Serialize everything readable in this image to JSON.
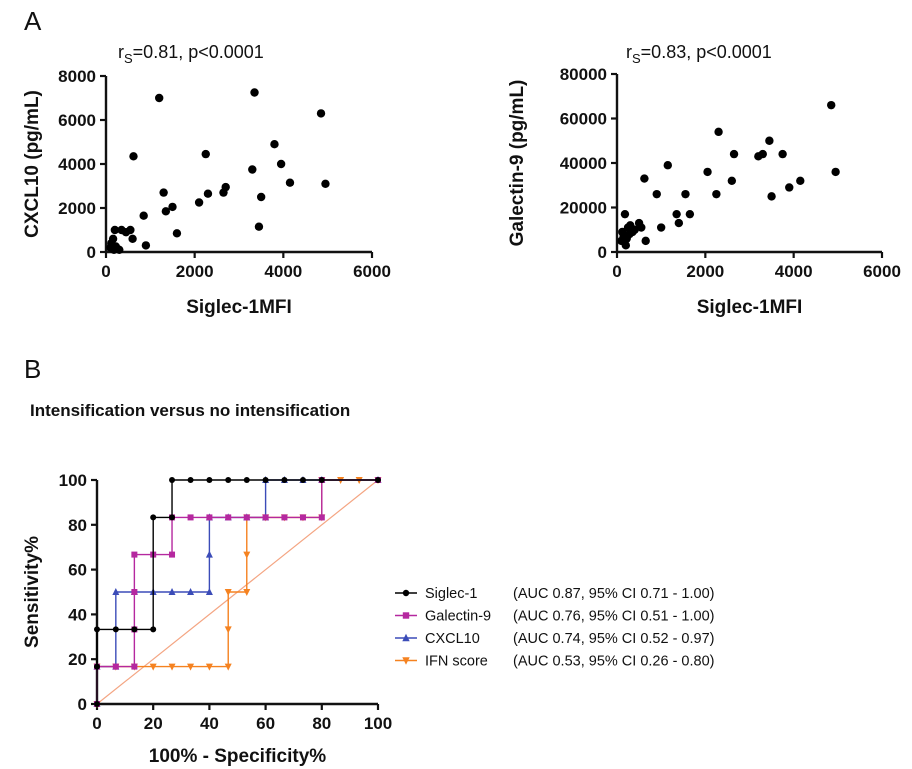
{
  "panel_letters": {
    "a": "A",
    "b": "B"
  },
  "chart_data": [
    {
      "id": "scatter_cxcl10",
      "type": "scatter",
      "annotation": {
        "r": "r",
        "sub": "S",
        "rest": "=0.81, p<0.0001"
      },
      "xlabel": "Siglec-1MFI",
      "ylabel": "CXCL10 (pg/mL)",
      "xlim": [
        0,
        6000
      ],
      "ylim": [
        0,
        8000
      ],
      "xticks": [
        0,
        2000,
        4000,
        6000
      ],
      "yticks": [
        0,
        2000,
        4000,
        6000,
        8000
      ],
      "grid": false,
      "color": "#000000",
      "points": [
        [
          100,
          200
        ],
        [
          120,
          400
        ],
        [
          150,
          300
        ],
        [
          160,
          600
        ],
        [
          180,
          100
        ],
        [
          200,
          1000
        ],
        [
          220,
          250
        ],
        [
          250,
          150
        ],
        [
          300,
          100
        ],
        [
          350,
          1000
        ],
        [
          450,
          900
        ],
        [
          550,
          1000
        ],
        [
          600,
          600
        ],
        [
          620,
          4350
        ],
        [
          850,
          1650
        ],
        [
          900,
          300
        ],
        [
          1200,
          7000
        ],
        [
          1300,
          2700
        ],
        [
          1350,
          1850
        ],
        [
          1500,
          2050
        ],
        [
          1600,
          850
        ],
        [
          2100,
          2250
        ],
        [
          2250,
          4450
        ],
        [
          2300,
          2650
        ],
        [
          2650,
          2700
        ],
        [
          2700,
          2950
        ],
        [
          3300,
          3750
        ],
        [
          3350,
          7250
        ],
        [
          3450,
          1150
        ],
        [
          3500,
          2500
        ],
        [
          3800,
          4900
        ],
        [
          3950,
          4000
        ],
        [
          4150,
          3150
        ],
        [
          4850,
          6300
        ],
        [
          4950,
          3100
        ]
      ]
    },
    {
      "id": "scatter_galectin",
      "type": "scatter",
      "annotation": {
        "r": "r",
        "sub": "S",
        "rest": "=0.83, p<0.0001"
      },
      "xlabel": "Siglec-1MFI",
      "ylabel": "Galectin-9 (pg/mL)",
      "xlim": [
        0,
        6000
      ],
      "ylim": [
        0,
        80000
      ],
      "xticks": [
        0,
        2000,
        4000,
        6000
      ],
      "yticks": [
        0,
        20000,
        40000,
        60000,
        80000
      ],
      "grid": false,
      "color": "#000000",
      "points": [
        [
          100,
          5000
        ],
        [
          120,
          9000
        ],
        [
          150,
          7000
        ],
        [
          180,
          17000
        ],
        [
          200,
          3000
        ],
        [
          220,
          6000
        ],
        [
          250,
          11000
        ],
        [
          280,
          8000
        ],
        [
          300,
          12000
        ],
        [
          350,
          9000
        ],
        [
          400,
          10000
        ],
        [
          500,
          13000
        ],
        [
          550,
          11000
        ],
        [
          620,
          33000
        ],
        [
          650,
          5000
        ],
        [
          900,
          26000
        ],
        [
          1000,
          11000
        ],
        [
          1150,
          39000
        ],
        [
          1350,
          17000
        ],
        [
          1400,
          13000
        ],
        [
          1550,
          26000
        ],
        [
          1650,
          17000
        ],
        [
          2050,
          36000
        ],
        [
          2250,
          26000
        ],
        [
          2300,
          54000
        ],
        [
          2600,
          32000
        ],
        [
          2650,
          44000
        ],
        [
          3200,
          43000
        ],
        [
          3300,
          44000
        ],
        [
          3450,
          50000
        ],
        [
          3500,
          25000
        ],
        [
          3750,
          44000
        ],
        [
          3900,
          29000
        ],
        [
          4150,
          32000
        ],
        [
          4850,
          66000
        ],
        [
          4950,
          36000
        ]
      ]
    },
    {
      "id": "roc",
      "type": "line",
      "title": "Intensification versus no intensification",
      "xlabel": "100% - Specificity%",
      "ylabel": "Sensitivity%",
      "xlim": [
        0,
        100
      ],
      "ylim": [
        0,
        100
      ],
      "xticks": [
        0,
        20,
        40,
        60,
        80,
        100
      ],
      "yticks": [
        0,
        20,
        40,
        60,
        80,
        100
      ],
      "grid": false,
      "legend_position": "right",
      "reference_line": {
        "color": "#f4a582",
        "points": [
          [
            0,
            0
          ],
          [
            100,
            100
          ]
        ]
      },
      "series": [
        {
          "name": "Siglec-1",
          "legend_detail": "(AUC 0.87, 95% CI 0.71 - 1.00)",
          "color": "#000000",
          "marker": "circle",
          "points": [
            [
              0,
              0
            ],
            [
              0,
              16.7
            ],
            [
              0,
              33.3
            ],
            [
              6.7,
              33.3
            ],
            [
              13.3,
              33.3
            ],
            [
              20,
              33.3
            ],
            [
              20,
              83.3
            ],
            [
              26.7,
              83.3
            ],
            [
              26.7,
              100
            ],
            [
              33.3,
              100
            ],
            [
              40,
              100
            ],
            [
              46.7,
              100
            ],
            [
              53.3,
              100
            ],
            [
              60,
              100
            ],
            [
              66.7,
              100
            ],
            [
              73.3,
              100
            ],
            [
              80,
              100
            ],
            [
              100,
              100
            ]
          ]
        },
        {
          "name": "Galectin-9",
          "legend_detail": "(AUC 0.76, 95% CI 0.51 - 1.00)",
          "color": "#b5289f",
          "marker": "square",
          "points": [
            [
              0,
              0
            ],
            [
              0,
              16.7
            ],
            [
              6.7,
              16.7
            ],
            [
              13.3,
              16.7
            ],
            [
              13.3,
              33.3
            ],
            [
              13.3,
              50
            ],
            [
              13.3,
              66.7
            ],
            [
              20,
              66.7
            ],
            [
              26.7,
              66.7
            ],
            [
              26.7,
              83.3
            ],
            [
              33.3,
              83.3
            ],
            [
              40,
              83.3
            ],
            [
              46.7,
              83.3
            ],
            [
              53.3,
              83.3
            ],
            [
              60,
              83.3
            ],
            [
              66.7,
              83.3
            ],
            [
              73.3,
              83.3
            ],
            [
              80,
              83.3
            ],
            [
              80,
              100
            ],
            [
              100,
              100
            ]
          ]
        },
        {
          "name": "CXCL10",
          "legend_detail": "(AUC 0.74, 95% CI 0.52 - 0.97)",
          "color": "#3b4cb8",
          "marker": "triangle-up",
          "points": [
            [
              0,
              0
            ],
            [
              0,
              16.7
            ],
            [
              6.7,
              16.7
            ],
            [
              6.7,
              50
            ],
            [
              13.3,
              50
            ],
            [
              20,
              50
            ],
            [
              26.7,
              50
            ],
            [
              33.3,
              50
            ],
            [
              40,
              50
            ],
            [
              40,
              66.7
            ],
            [
              40,
              83.3
            ],
            [
              46.7,
              83.3
            ],
            [
              53.3,
              83.3
            ],
            [
              60,
              83.3
            ],
            [
              60,
              100
            ],
            [
              66.7,
              100
            ],
            [
              73.3,
              100
            ],
            [
              80,
              100
            ],
            [
              100,
              100
            ]
          ]
        },
        {
          "name": "IFN score",
          "legend_detail": "(AUC 0.53, 95% CI 0.26 - 0.80)",
          "color": "#f58220",
          "marker": "triangle-down",
          "points": [
            [
              0,
              0
            ],
            [
              0,
              16.7
            ],
            [
              6.7,
              16.7
            ],
            [
              13.3,
              16.7
            ],
            [
              20,
              16.7
            ],
            [
              26.7,
              16.7
            ],
            [
              33.3,
              16.7
            ],
            [
              40,
              16.7
            ],
            [
              46.7,
              16.7
            ],
            [
              46.7,
              33.3
            ],
            [
              46.7,
              50
            ],
            [
              53.3,
              50
            ],
            [
              53.3,
              66.7
            ],
            [
              53.3,
              83.3
            ],
            [
              60,
              83.3
            ],
            [
              66.7,
              83.3
            ],
            [
              73.3,
              83.3
            ],
            [
              80,
              83.3
            ],
            [
              80,
              100
            ],
            [
              86.7,
              100
            ],
            [
              93.3,
              100
            ],
            [
              100,
              100
            ]
          ]
        }
      ]
    }
  ]
}
